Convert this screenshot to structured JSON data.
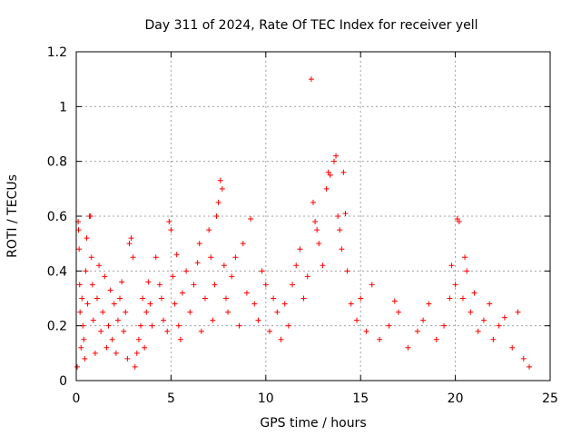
{
  "chart_data": {
    "type": "scatter",
    "title": "Day 311 of 2024, Rate Of TEC Index for receiver yell",
    "xlabel": "GPS time / hours",
    "ylabel": "ROTI / TECUs",
    "xlim": [
      0,
      25
    ],
    "ylim": [
      0,
      1.2
    ],
    "xticks": [
      0,
      5,
      10,
      15,
      20,
      25
    ],
    "xtick_labels": [
      "0",
      "5",
      "10",
      "15",
      "20",
      "25"
    ],
    "yticks": [
      0,
      0.2,
      0.4,
      0.6,
      0.8,
      1.0,
      1.2
    ],
    "ytick_labels": [
      "0",
      "0.2",
      "0.4",
      "0.6",
      "0.8",
      "1",
      "1.2"
    ],
    "grid": true,
    "marker": "+",
    "color": "#ff0000",
    "series": [
      {
        "name": "ROTI",
        "points": [
          [
            0.05,
            0.05
          ],
          [
            0.1,
            0.58
          ],
          [
            0.12,
            0.55
          ],
          [
            0.15,
            0.48
          ],
          [
            0.18,
            0.35
          ],
          [
            0.2,
            0.25
          ],
          [
            0.25,
            0.12
          ],
          [
            0.3,
            0.3
          ],
          [
            0.35,
            0.2
          ],
          [
            0.4,
            0.15
          ],
          [
            0.45,
            0.08
          ],
          [
            0.5,
            0.4
          ],
          [
            0.55,
            0.52
          ],
          [
            0.6,
            0.28
          ],
          [
            0.7,
            0.6
          ],
          [
            0.75,
            0.6
          ],
          [
            0.8,
            0.45
          ],
          [
            0.85,
            0.35
          ],
          [
            0.9,
            0.22
          ],
          [
            1.0,
            0.1
          ],
          [
            1.1,
            0.3
          ],
          [
            1.2,
            0.42
          ],
          [
            1.3,
            0.18
          ],
          [
            1.4,
            0.25
          ],
          [
            1.5,
            0.38
          ],
          [
            1.6,
            0.12
          ],
          [
            1.7,
            0.2
          ],
          [
            1.8,
            0.33
          ],
          [
            1.9,
            0.15
          ],
          [
            2.0,
            0.28
          ],
          [
            2.1,
            0.1
          ],
          [
            2.2,
            0.22
          ],
          [
            2.3,
            0.3
          ],
          [
            2.4,
            0.36
          ],
          [
            2.5,
            0.18
          ],
          [
            2.6,
            0.25
          ],
          [
            2.7,
            0.08
          ],
          [
            2.8,
            0.5
          ],
          [
            2.9,
            0.52
          ],
          [
            3.0,
            0.45
          ],
          [
            3.1,
            0.05
          ],
          [
            3.2,
            0.1
          ],
          [
            3.3,
            0.15
          ],
          [
            3.4,
            0.2
          ],
          [
            3.5,
            0.3
          ],
          [
            3.6,
            0.12
          ],
          [
            3.7,
            0.25
          ],
          [
            3.8,
            0.36
          ],
          [
            3.9,
            0.28
          ],
          [
            4.0,
            0.2
          ],
          [
            4.2,
            0.45
          ],
          [
            4.4,
            0.35
          ],
          [
            4.5,
            0.3
          ],
          [
            4.6,
            0.22
          ],
          [
            4.8,
            0.18
          ],
          [
            4.9,
            0.58
          ],
          [
            5.0,
            0.55
          ],
          [
            5.1,
            0.38
          ],
          [
            5.2,
            0.28
          ],
          [
            5.3,
            0.46
          ],
          [
            5.4,
            0.2
          ],
          [
            5.5,
            0.15
          ],
          [
            5.6,
            0.32
          ],
          [
            5.8,
            0.4
          ],
          [
            6.0,
            0.25
          ],
          [
            6.2,
            0.35
          ],
          [
            6.4,
            0.43
          ],
          [
            6.5,
            0.5
          ],
          [
            6.6,
            0.18
          ],
          [
            6.8,
            0.3
          ],
          [
            7.0,
            0.55
          ],
          [
            7.1,
            0.45
          ],
          [
            7.2,
            0.22
          ],
          [
            7.3,
            0.35
          ],
          [
            7.4,
            0.6
          ],
          [
            7.5,
            0.65
          ],
          [
            7.6,
            0.73
          ],
          [
            7.7,
            0.7
          ],
          [
            7.8,
            0.42
          ],
          [
            7.9,
            0.3
          ],
          [
            8.0,
            0.25
          ],
          [
            8.2,
            0.38
          ],
          [
            8.4,
            0.45
          ],
          [
            8.6,
            0.2
          ],
          [
            8.8,
            0.5
          ],
          [
            9.0,
            0.32
          ],
          [
            9.2,
            0.59
          ],
          [
            9.4,
            0.28
          ],
          [
            9.6,
            0.22
          ],
          [
            9.8,
            0.4
          ],
          [
            10.0,
            0.35
          ],
          [
            10.2,
            0.18
          ],
          [
            10.4,
            0.3
          ],
          [
            10.6,
            0.25
          ],
          [
            10.8,
            0.15
          ],
          [
            11.0,
            0.28
          ],
          [
            11.2,
            0.2
          ],
          [
            11.4,
            0.35
          ],
          [
            11.6,
            0.42
          ],
          [
            11.8,
            0.48
          ],
          [
            12.0,
            0.3
          ],
          [
            12.2,
            0.38
          ],
          [
            12.4,
            1.1
          ],
          [
            12.5,
            0.65
          ],
          [
            12.6,
            0.58
          ],
          [
            12.7,
            0.55
          ],
          [
            12.8,
            0.5
          ],
          [
            13.0,
            0.42
          ],
          [
            13.2,
            0.7
          ],
          [
            13.3,
            0.76
          ],
          [
            13.4,
            0.75
          ],
          [
            13.6,
            0.8
          ],
          [
            13.7,
            0.82
          ],
          [
            13.8,
            0.6
          ],
          [
            13.9,
            0.55
          ],
          [
            14.0,
            0.48
          ],
          [
            14.1,
            0.76
          ],
          [
            14.2,
            0.61
          ],
          [
            14.3,
            0.4
          ],
          [
            14.5,
            0.28
          ],
          [
            14.8,
            0.22
          ],
          [
            15.0,
            0.3
          ],
          [
            15.3,
            0.18
          ],
          [
            15.6,
            0.35
          ],
          [
            16.0,
            0.15
          ],
          [
            16.5,
            0.2
          ],
          [
            16.8,
            0.29
          ],
          [
            17.0,
            0.25
          ],
          [
            17.5,
            0.12
          ],
          [
            18.0,
            0.18
          ],
          [
            18.3,
            0.22
          ],
          [
            18.6,
            0.28
          ],
          [
            19.0,
            0.15
          ],
          [
            19.4,
            0.2
          ],
          [
            19.7,
            0.3
          ],
          [
            19.8,
            0.42
          ],
          [
            20.0,
            0.35
          ],
          [
            20.1,
            0.59
          ],
          [
            20.2,
            0.58
          ],
          [
            20.4,
            0.3
          ],
          [
            20.5,
            0.45
          ],
          [
            20.6,
            0.4
          ],
          [
            20.8,
            0.25
          ],
          [
            21.0,
            0.32
          ],
          [
            21.2,
            0.18
          ],
          [
            21.5,
            0.22
          ],
          [
            21.8,
            0.28
          ],
          [
            22.0,
            0.15
          ],
          [
            22.3,
            0.2
          ],
          [
            22.6,
            0.23
          ],
          [
            23.0,
            0.12
          ],
          [
            23.3,
            0.25
          ],
          [
            23.6,
            0.08
          ],
          [
            23.9,
            0.05
          ]
        ]
      }
    ]
  }
}
